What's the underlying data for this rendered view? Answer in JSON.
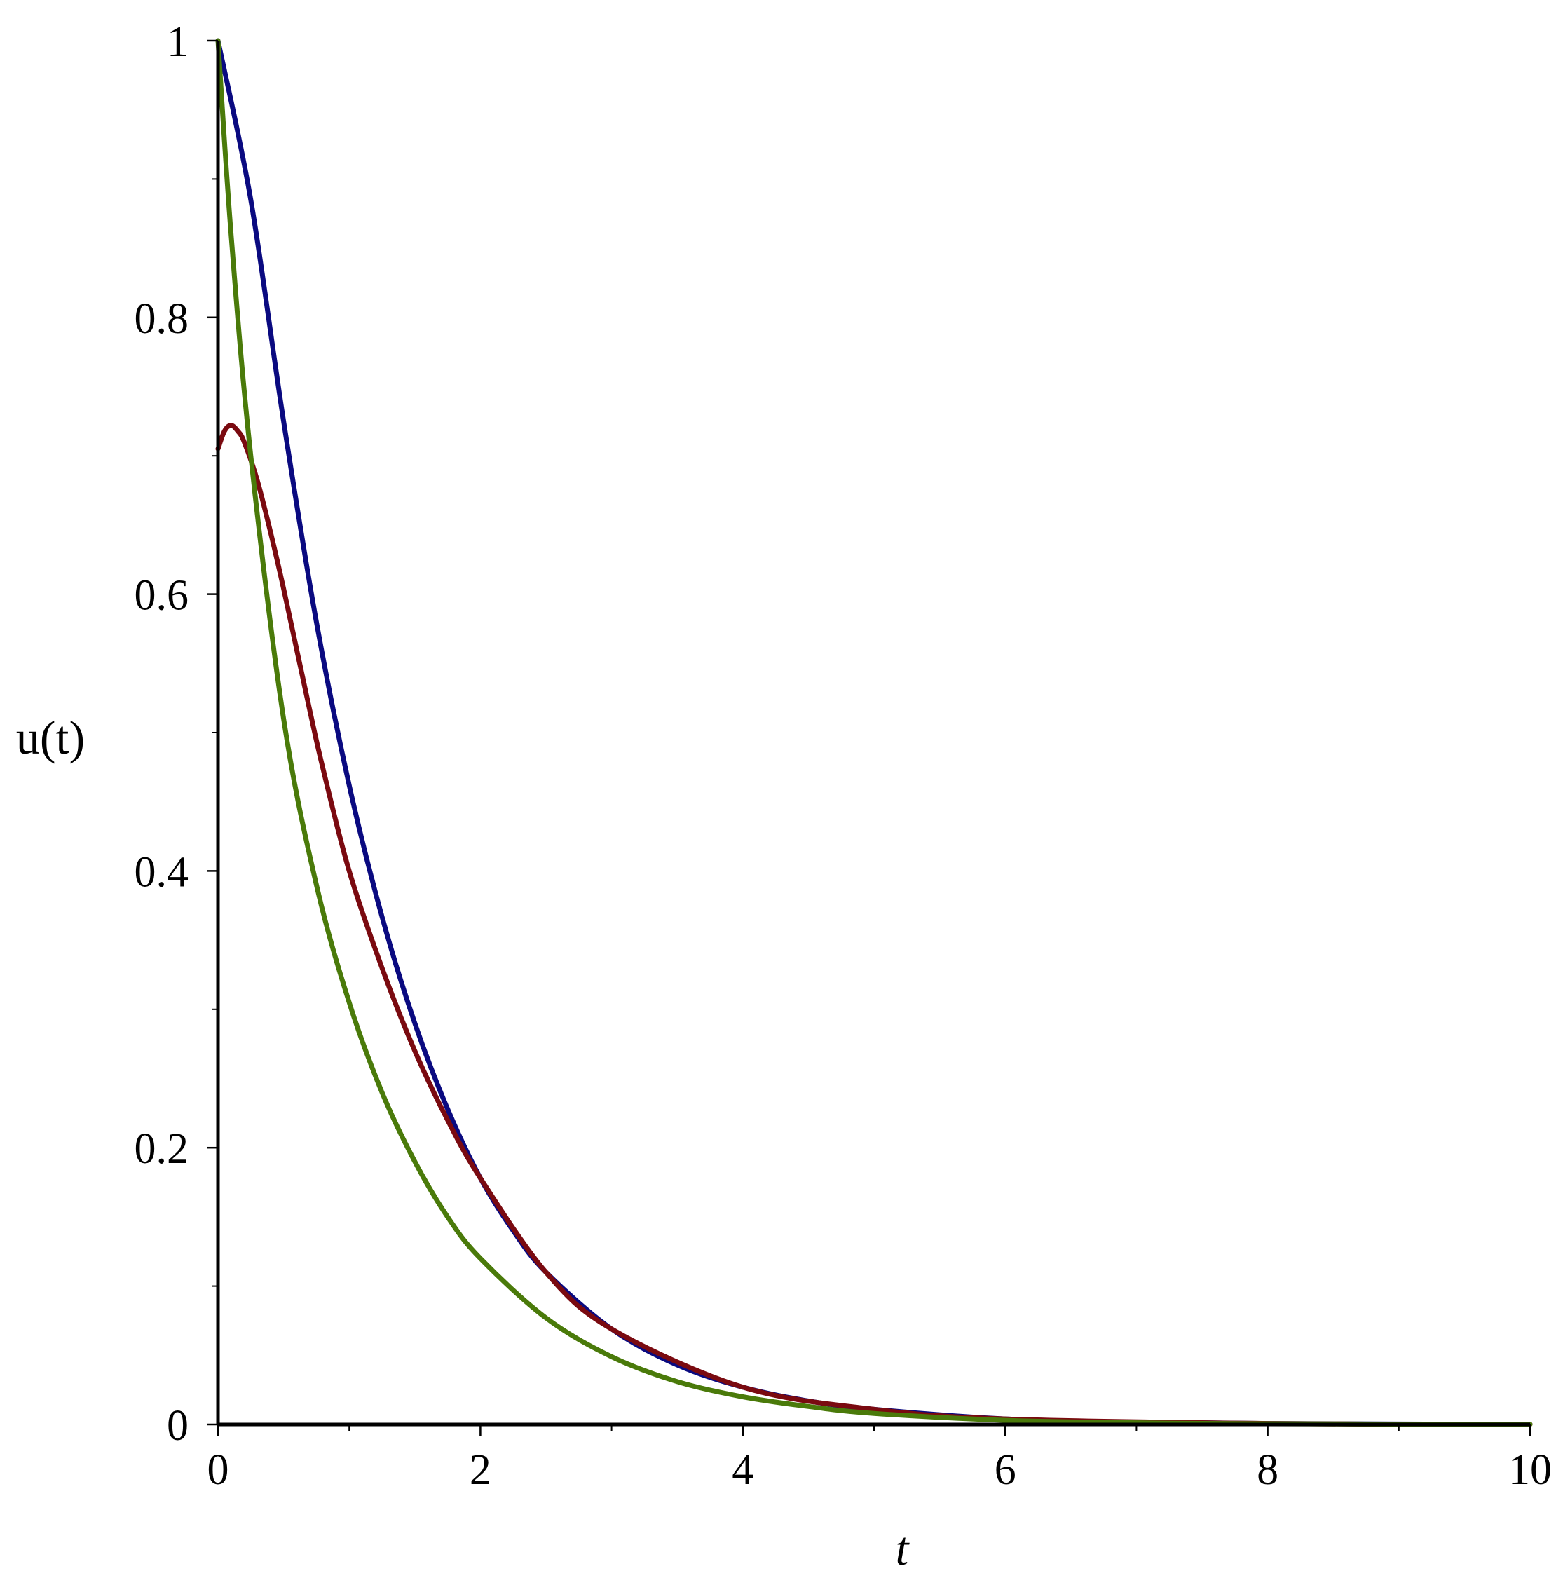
{
  "chart_data": {
    "type": "line",
    "title": "",
    "xlabel": "t",
    "ylabel": "u(t)",
    "xlim": [
      0,
      10
    ],
    "ylim": [
      0,
      1
    ],
    "x_ticks": [
      0,
      2,
      4,
      6,
      8,
      10
    ],
    "x_tick_labels": [
      "0",
      "2",
      "4",
      "6",
      "8",
      "10"
    ],
    "y_ticks": [
      0,
      0.2,
      0.4,
      0.6,
      0.8,
      1
    ],
    "y_tick_labels": [
      "0",
      "0.2",
      "0.4",
      "0.6",
      "0.8",
      "1"
    ],
    "x_minor_ticks": [
      1,
      3,
      5,
      7,
      9
    ],
    "y_minor_ticks": [
      0.1,
      0.3,
      0.5,
      0.7,
      0.9
    ],
    "grid": false,
    "series": [
      {
        "color": "#0a0a80",
        "x": [
          0,
          0.25,
          0.5,
          0.75,
          1,
          1.25,
          1.5,
          1.75,
          2,
          2.25,
          2.5,
          3,
          3.5,
          4,
          4.5,
          5,
          6,
          7,
          8,
          9,
          10
        ],
        "y": [
          1.0,
          0.885,
          0.725,
          0.58,
          0.462,
          0.367,
          0.29,
          0.228,
          0.178,
          0.14,
          0.11,
          0.069,
          0.043,
          0.027,
          0.017,
          0.011,
          0.004,
          0.0017,
          0.0007,
          0.0003,
          0.0001
        ]
      },
      {
        "color": "#7a0a10",
        "x": [
          0,
          0.05,
          0.1,
          0.15,
          0.2,
          0.3,
          0.4,
          0.5,
          0.6,
          0.7,
          0.8,
          1,
          1.25,
          1.5,
          1.75,
          2,
          2.5,
          3,
          4,
          5,
          6,
          8,
          10
        ],
        "y": [
          0.705,
          0.718,
          0.722,
          0.718,
          0.71,
          0.682,
          0.645,
          0.604,
          0.56,
          0.516,
          0.474,
          0.4,
          0.33,
          0.27,
          0.22,
          0.178,
          0.11,
          0.069,
          0.027,
          0.011,
          0.004,
          0.0007,
          0.0001
        ]
      },
      {
        "color": "#4a7a0a",
        "x": [
          0,
          0.1,
          0.25,
          0.5,
          0.75,
          1,
          1.25,
          1.5,
          1.75,
          2,
          2.5,
          3,
          3.5,
          4,
          4.5,
          5,
          6,
          7,
          8,
          10
        ],
        "y": [
          1.0,
          0.86,
          0.7,
          0.51,
          0.39,
          0.305,
          0.24,
          0.19,
          0.15,
          0.12,
          0.077,
          0.049,
          0.031,
          0.02,
          0.013,
          0.008,
          0.003,
          0.0012,
          0.0005,
          0.0001
        ]
      }
    ]
  }
}
